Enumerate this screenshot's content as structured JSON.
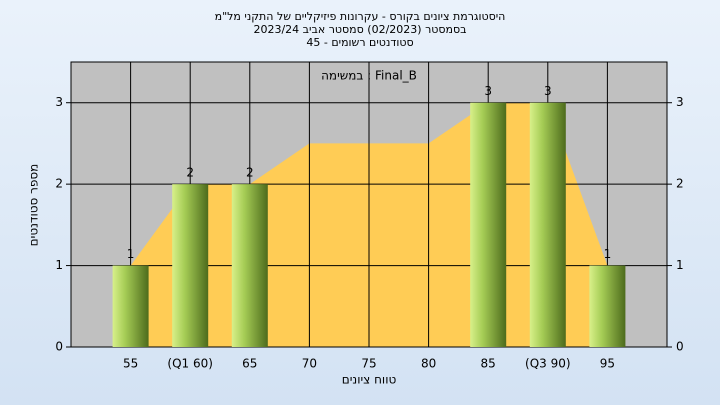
{
  "chart_data": {
    "type": "bar",
    "title": [
      "היסטוגרמת ציונים בקורס - עקרונות פיזיקליים של התקני מל\"מ",
      "בסמסטר  (02/2023)  סמסטר אביב 2023/24",
      "סטודנטים רשומים - 45"
    ],
    "annotation": "במשימה : Final_B",
    "x_label": "טווח ציונים",
    "y_label": "מספר סטודנטים",
    "categories": [
      "55",
      "(Q1 60)",
      "65",
      "70",
      "75",
      "80",
      "85",
      "(Q3 90)",
      "95"
    ],
    "values": [
      1,
      2,
      2,
      0,
      0,
      0,
      3,
      3,
      1
    ],
    "color": "#8fbf3c",
    "trend": {
      "color": "#ffcc55",
      "values": [
        1,
        2,
        2,
        2.5,
        2.5,
        2.5,
        3,
        3,
        1
      ]
    },
    "ylim": [
      0,
      3.5
    ],
    "yticks": [
      0,
      1,
      2,
      3
    ],
    "grid": true
  }
}
